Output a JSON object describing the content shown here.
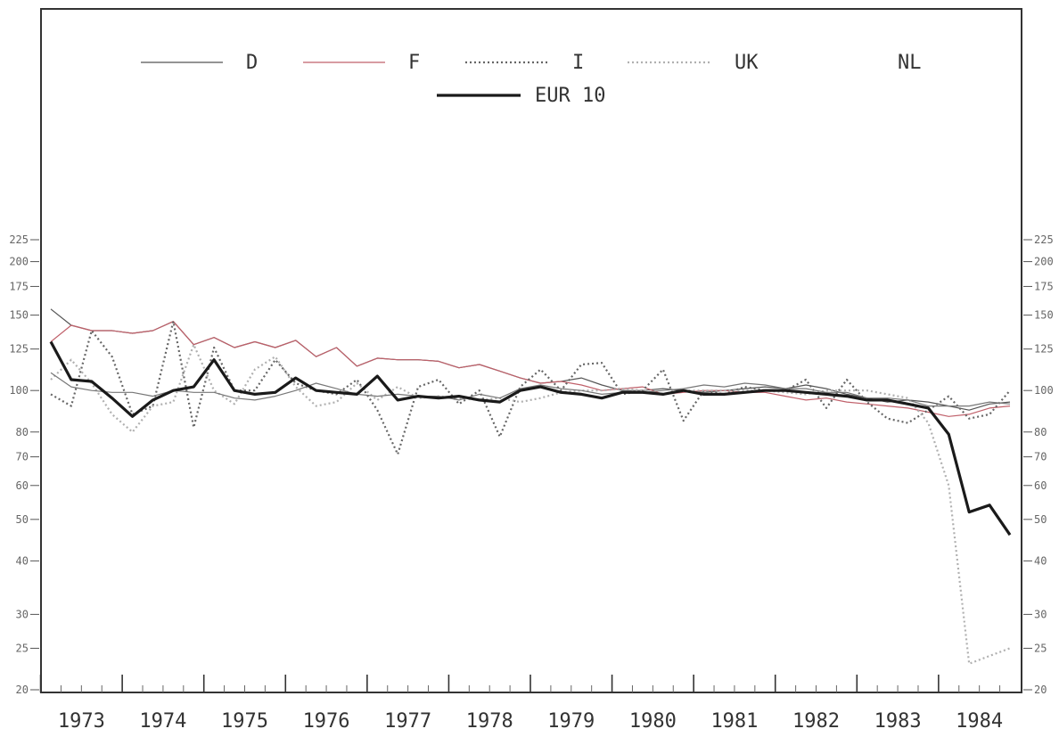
{
  "chart_data": {
    "type": "line",
    "yscale": "log",
    "ylim": [
      20,
      225
    ],
    "y_ticks": [
      20,
      25,
      30,
      40,
      50,
      60,
      70,
      80,
      100,
      125,
      150,
      175,
      200,
      225
    ],
    "x_tick_labels": [
      "1973",
      "1974",
      "1975",
      "1976",
      "1977",
      "1978",
      "1979",
      "1980",
      "1981",
      "1982",
      "1983",
      "1984"
    ],
    "x_points": [
      "1973 Q1",
      "1973 Q2",
      "1973 Q3",
      "1973 Q4",
      "1974 Q1",
      "1974 Q2",
      "1974 Q3",
      "1974 Q4",
      "1975 Q1",
      "1975 Q2",
      "1975 Q3",
      "1975 Q4",
      "1976 Q1",
      "1976 Q2",
      "1976 Q3",
      "1976 Q4",
      "1977 Q1",
      "1977 Q2",
      "1977 Q3",
      "1977 Q4",
      "1978 Q1",
      "1978 Q2",
      "1978 Q3",
      "1978 Q4",
      "1979 Q1",
      "1979 Q2",
      "1979 Q3",
      "1979 Q4",
      "1980 Q1",
      "1980 Q2",
      "1980 Q3",
      "1980 Q4",
      "1981 Q1",
      "1981 Q2",
      "1981 Q3",
      "1981 Q4",
      "1982 Q1",
      "1982 Q2",
      "1982 Q3",
      "1982 Q4",
      "1983 Q1",
      "1983 Q2",
      "1983 Q3",
      "1983 Q4",
      "1984 Q1",
      "1984 Q2",
      "1984 Q3",
      "1984 Q4"
    ],
    "legend_placement": "top",
    "series": [
      {
        "name": "D",
        "color": "#555555",
        "style": "thin",
        "values": [
          155,
          142,
          138,
          138,
          136,
          138,
          145,
          128,
          133,
          126,
          130,
          126,
          131,
          120,
          126,
          114,
          119,
          118,
          118,
          117,
          113,
          115,
          111,
          107,
          104,
          105,
          107,
          103,
          100,
          100,
          101,
          100,
          99,
          100,
          101,
          102,
          101,
          103,
          101,
          98,
          96,
          94,
          95,
          94,
          92,
          90,
          93,
          94
        ]
      },
      {
        "name": "F",
        "color": "#c0606a",
        "style": "thin",
        "values": [
          130,
          142,
          138,
          138,
          136,
          138,
          145,
          128,
          133,
          126,
          130,
          126,
          131,
          120,
          126,
          114,
          119,
          118,
          118,
          117,
          113,
          115,
          111,
          107,
          104,
          105,
          103,
          100,
          101,
          102,
          98,
          99,
          100,
          100,
          99,
          99,
          97,
          95,
          96,
          94,
          93,
          92,
          91,
          89,
          87,
          88,
          91,
          92
        ]
      },
      {
        "name": "I",
        "color": "#666666",
        "style": "dotted",
        "values": [
          98,
          92,
          138,
          120,
          88,
          92,
          145,
          82,
          126,
          100,
          100,
          118,
          104,
          100,
          98,
          106,
          90,
          71,
          102,
          106,
          93,
          100,
          78,
          102,
          112,
          100,
          115,
          116,
          98,
          100,
          112,
          85,
          100,
          98,
          102,
          100,
          100,
          106,
          91,
          106,
          94,
          86,
          84,
          90,
          97,
          86,
          88,
          100
        ]
      },
      {
        "name": "UK",
        "color": "#b0b0b0",
        "style": "dotted",
        "values": [
          106,
          118,
          104,
          88,
          80,
          92,
          94,
          128,
          100,
          93,
          112,
          120,
          102,
          92,
          94,
          104,
          95,
          102,
          96,
          97,
          96,
          95,
          96,
          94,
          96,
          99,
          100,
          100,
          101,
          100,
          98,
          100,
          100,
          100,
          100,
          100,
          99,
          98,
          100,
          100,
          100,
          98,
          96,
          84,
          60,
          23,
          24,
          25
        ]
      },
      {
        "name": "NL",
        "color": "#777777",
        "style": "thin",
        "values": [
          110,
          102,
          100,
          99,
          99,
          97,
          100,
          99,
          99,
          96,
          95,
          97,
          100,
          104,
          101,
          98,
          97,
          98,
          97,
          97,
          95,
          98,
          96,
          101,
          103,
          101,
          100,
          98,
          99,
          99,
          100,
          101,
          103,
          102,
          104,
          103,
          101,
          101,
          99,
          99,
          96,
          96,
          95,
          92,
          92,
          92,
          94,
          93
        ]
      },
      {
        "name": "EUR 10",
        "color": "#1a1a1a",
        "style": "thick",
        "values": [
          130,
          106,
          105,
          96,
          87,
          95,
          100,
          102,
          118,
          100,
          98,
          99,
          107,
          100,
          99,
          98,
          108,
          95,
          97,
          96,
          97,
          95,
          94,
          100,
          102,
          99,
          98,
          96,
          99,
          99,
          98,
          100,
          98,
          98,
          99,
          100,
          100,
          99,
          98,
          97,
          95,
          95,
          93,
          91,
          79,
          52,
          54,
          46
        ]
      }
    ]
  }
}
